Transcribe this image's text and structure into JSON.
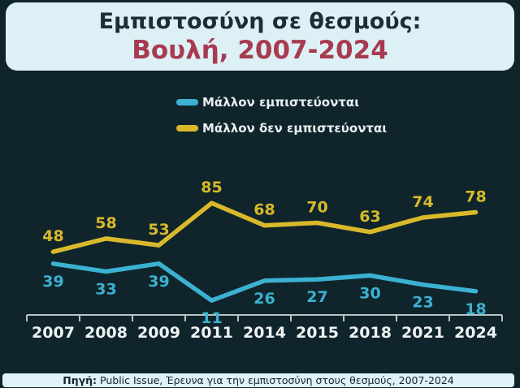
{
  "title": {
    "line1": "Εμπιστοσύνη σε θεσμούς:",
    "line2": "Βουλή, 2007-2024"
  },
  "footer": {
    "prefix": "Πηγή:",
    "text": "Public Issue, Έρευνα για την εμπιστοσύνη στους θεσμούς, 2007-2024"
  },
  "colors": {
    "background": "#0f252b",
    "card_background": "#ddf0f6",
    "title": "#1d2c39",
    "subtitle": "#a73b51",
    "axis": "#b9c3c6",
    "year_labels": "#eef2f3",
    "trust_series": "#3cb1d1",
    "distrust_series": "#d9b92b"
  },
  "chart_data": {
    "type": "line",
    "title": "Εμπιστοσύνη σε θεσμούς: Βουλή, 2007-2024",
    "categories": [
      "2007",
      "2008",
      "2009",
      "2011",
      "2014",
      "2015",
      "2018",
      "2021",
      "2024"
    ],
    "series": [
      {
        "name": "Μάλλον εμπιστεύονται",
        "color": "#3cb1d1",
        "values": [
          39,
          33,
          39,
          11,
          26,
          27,
          30,
          23,
          18
        ],
        "label_position": "below"
      },
      {
        "name": "Μάλλον δεν εμπιστεύονται",
        "color": "#d9b92b",
        "values": [
          48,
          58,
          53,
          85,
          68,
          70,
          63,
          74,
          78
        ],
        "label_position": "above"
      }
    ],
    "xlabel": "",
    "ylabel": "",
    "ylim": [
      0,
      100
    ],
    "grid": false,
    "data_labels": true,
    "legend_position": "top-center"
  }
}
